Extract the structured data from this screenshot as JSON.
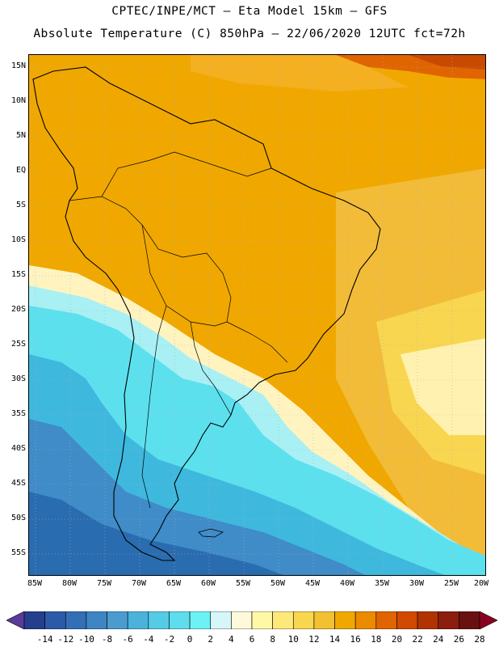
{
  "header": {
    "line1": "CPTEC/INPE/MCT –  Eta Model 15km – GFS",
    "line2": "Absolute Temperature (C) 850hPa – 22/06/2020 12UTC fct=72h"
  },
  "map": {
    "lat_labels": [
      "15N",
      "10N",
      "5N",
      "EQ",
      "5S",
      "10S",
      "15S",
      "20S",
      "25S",
      "30S",
      "35S",
      "40S",
      "45S",
      "50S",
      "55S"
    ],
    "lon_labels": [
      "85W",
      "80W",
      "75W",
      "70W",
      "65W",
      "60W",
      "55W",
      "50W",
      "45W",
      "40W",
      "35W",
      "30W",
      "25W",
      "20W"
    ],
    "grid": "dotted",
    "colors": {
      "warmest": "#c84a00",
      "warm_orange": "#f0a800",
      "light_orange": "#f4c040",
      "yellow": "#fbe36a",
      "pale_yellow": "#fff6b8",
      "cyan": "#5ce0ee",
      "light_cyan": "#a8f0f4",
      "mid_blue": "#3fa8d8",
      "deep_blue": "#2a6cb0",
      "land_outline": "#000000"
    }
  },
  "colorbar": {
    "labels": [
      "-14",
      "-12",
      "-10",
      "-8",
      "-6",
      "-4",
      "-2",
      "0",
      "2",
      "4",
      "6",
      "8",
      "10",
      "12",
      "14",
      "16",
      "18",
      "20",
      "22",
      "24",
      "26",
      "28"
    ],
    "colors": [
      "#5b3a9a",
      "#243f8e",
      "#2b5aa8",
      "#336fb6",
      "#3f85c4",
      "#4a9ccf",
      "#4bb3db",
      "#55cbe6",
      "#5fdded",
      "#6cf2f4",
      "#d6f6fa",
      "#fff9dc",
      "#fff9a6",
      "#fde97a",
      "#f8d650",
      "#f2c030",
      "#f0a800",
      "#ec8a00",
      "#e06400",
      "#d04a00",
      "#b03400",
      "#8c1e10",
      "#6a1010",
      "#8a0020"
    ],
    "units": "C"
  }
}
